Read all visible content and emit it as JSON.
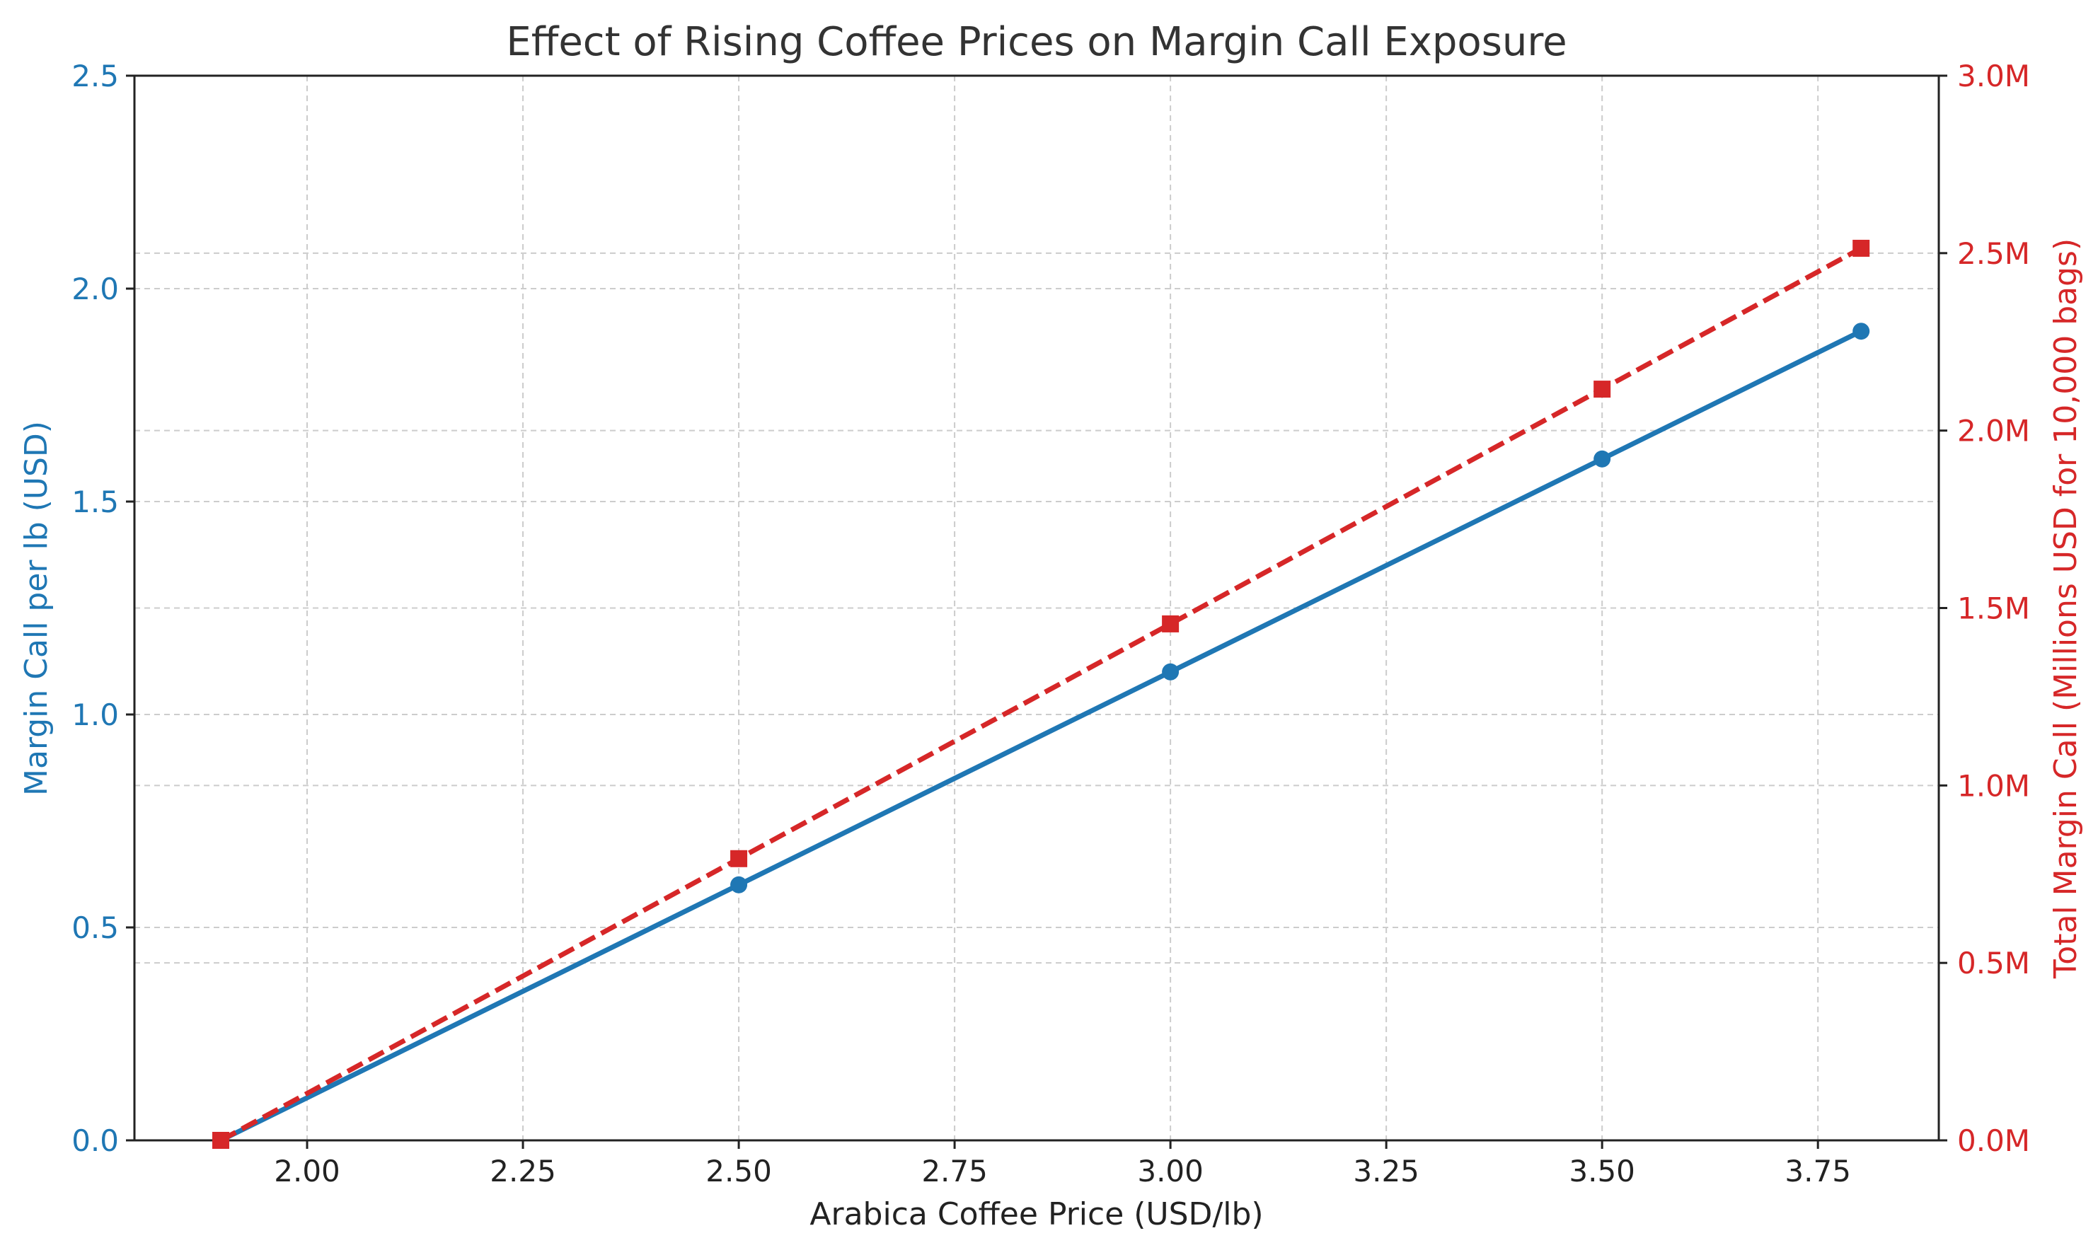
{
  "chart_data": {
    "type": "line",
    "title": "Effect of Rising Coffee Prices on Margin Call Exposure",
    "xlabel": "Arabica Coffee Price (USD/lb)",
    "ylabel_left": "Margin Call per lb (USD)",
    "ylabel_right": "Total Margin Call (Millions USD for 10,000 bags)",
    "x": [
      1.9,
      2.5,
      3.0,
      3.5,
      3.8
    ],
    "xlim": [
      1.8,
      3.89
    ],
    "x_ticks": [
      "2.00",
      "2.25",
      "2.50",
      "2.75",
      "3.00",
      "3.25",
      "3.50",
      "3.75"
    ],
    "x_tick_values": [
      2.0,
      2.25,
      2.5,
      2.75,
      3.0,
      3.25,
      3.5,
      3.75
    ],
    "ylim_left": [
      0,
      2.5
    ],
    "y_ticks_left": [
      "0.0",
      "0.5",
      "1.0",
      "1.5",
      "2.0",
      "2.5"
    ],
    "y_tick_values_left": [
      0,
      0.5,
      1.0,
      1.5,
      2.0,
      2.5
    ],
    "ylim_right": [
      0,
      3.0
    ],
    "y_ticks_right": [
      "0.0M",
      "0.5M",
      "1.0M",
      "1.5M",
      "2.0M",
      "2.5M",
      "3.0M"
    ],
    "y_tick_values_right": [
      0,
      0.5,
      1.0,
      1.5,
      2.0,
      2.5,
      3.0
    ],
    "grid": true,
    "series": [
      {
        "axis": "left",
        "values": [
          0.0,
          0.6,
          1.1,
          1.6,
          1.9
        ],
        "color": "#1f77b4",
        "line_style": "solid",
        "marker": "circle"
      },
      {
        "axis": "right",
        "values": [
          0.0,
          0.7938,
          1.4553,
          2.1168,
          2.5137
        ],
        "color": "#d62728",
        "line_style": "dashed",
        "marker": "square"
      }
    ],
    "colors": {
      "left_axis": "#1f77b4",
      "right_axis": "#d62728"
    }
  }
}
